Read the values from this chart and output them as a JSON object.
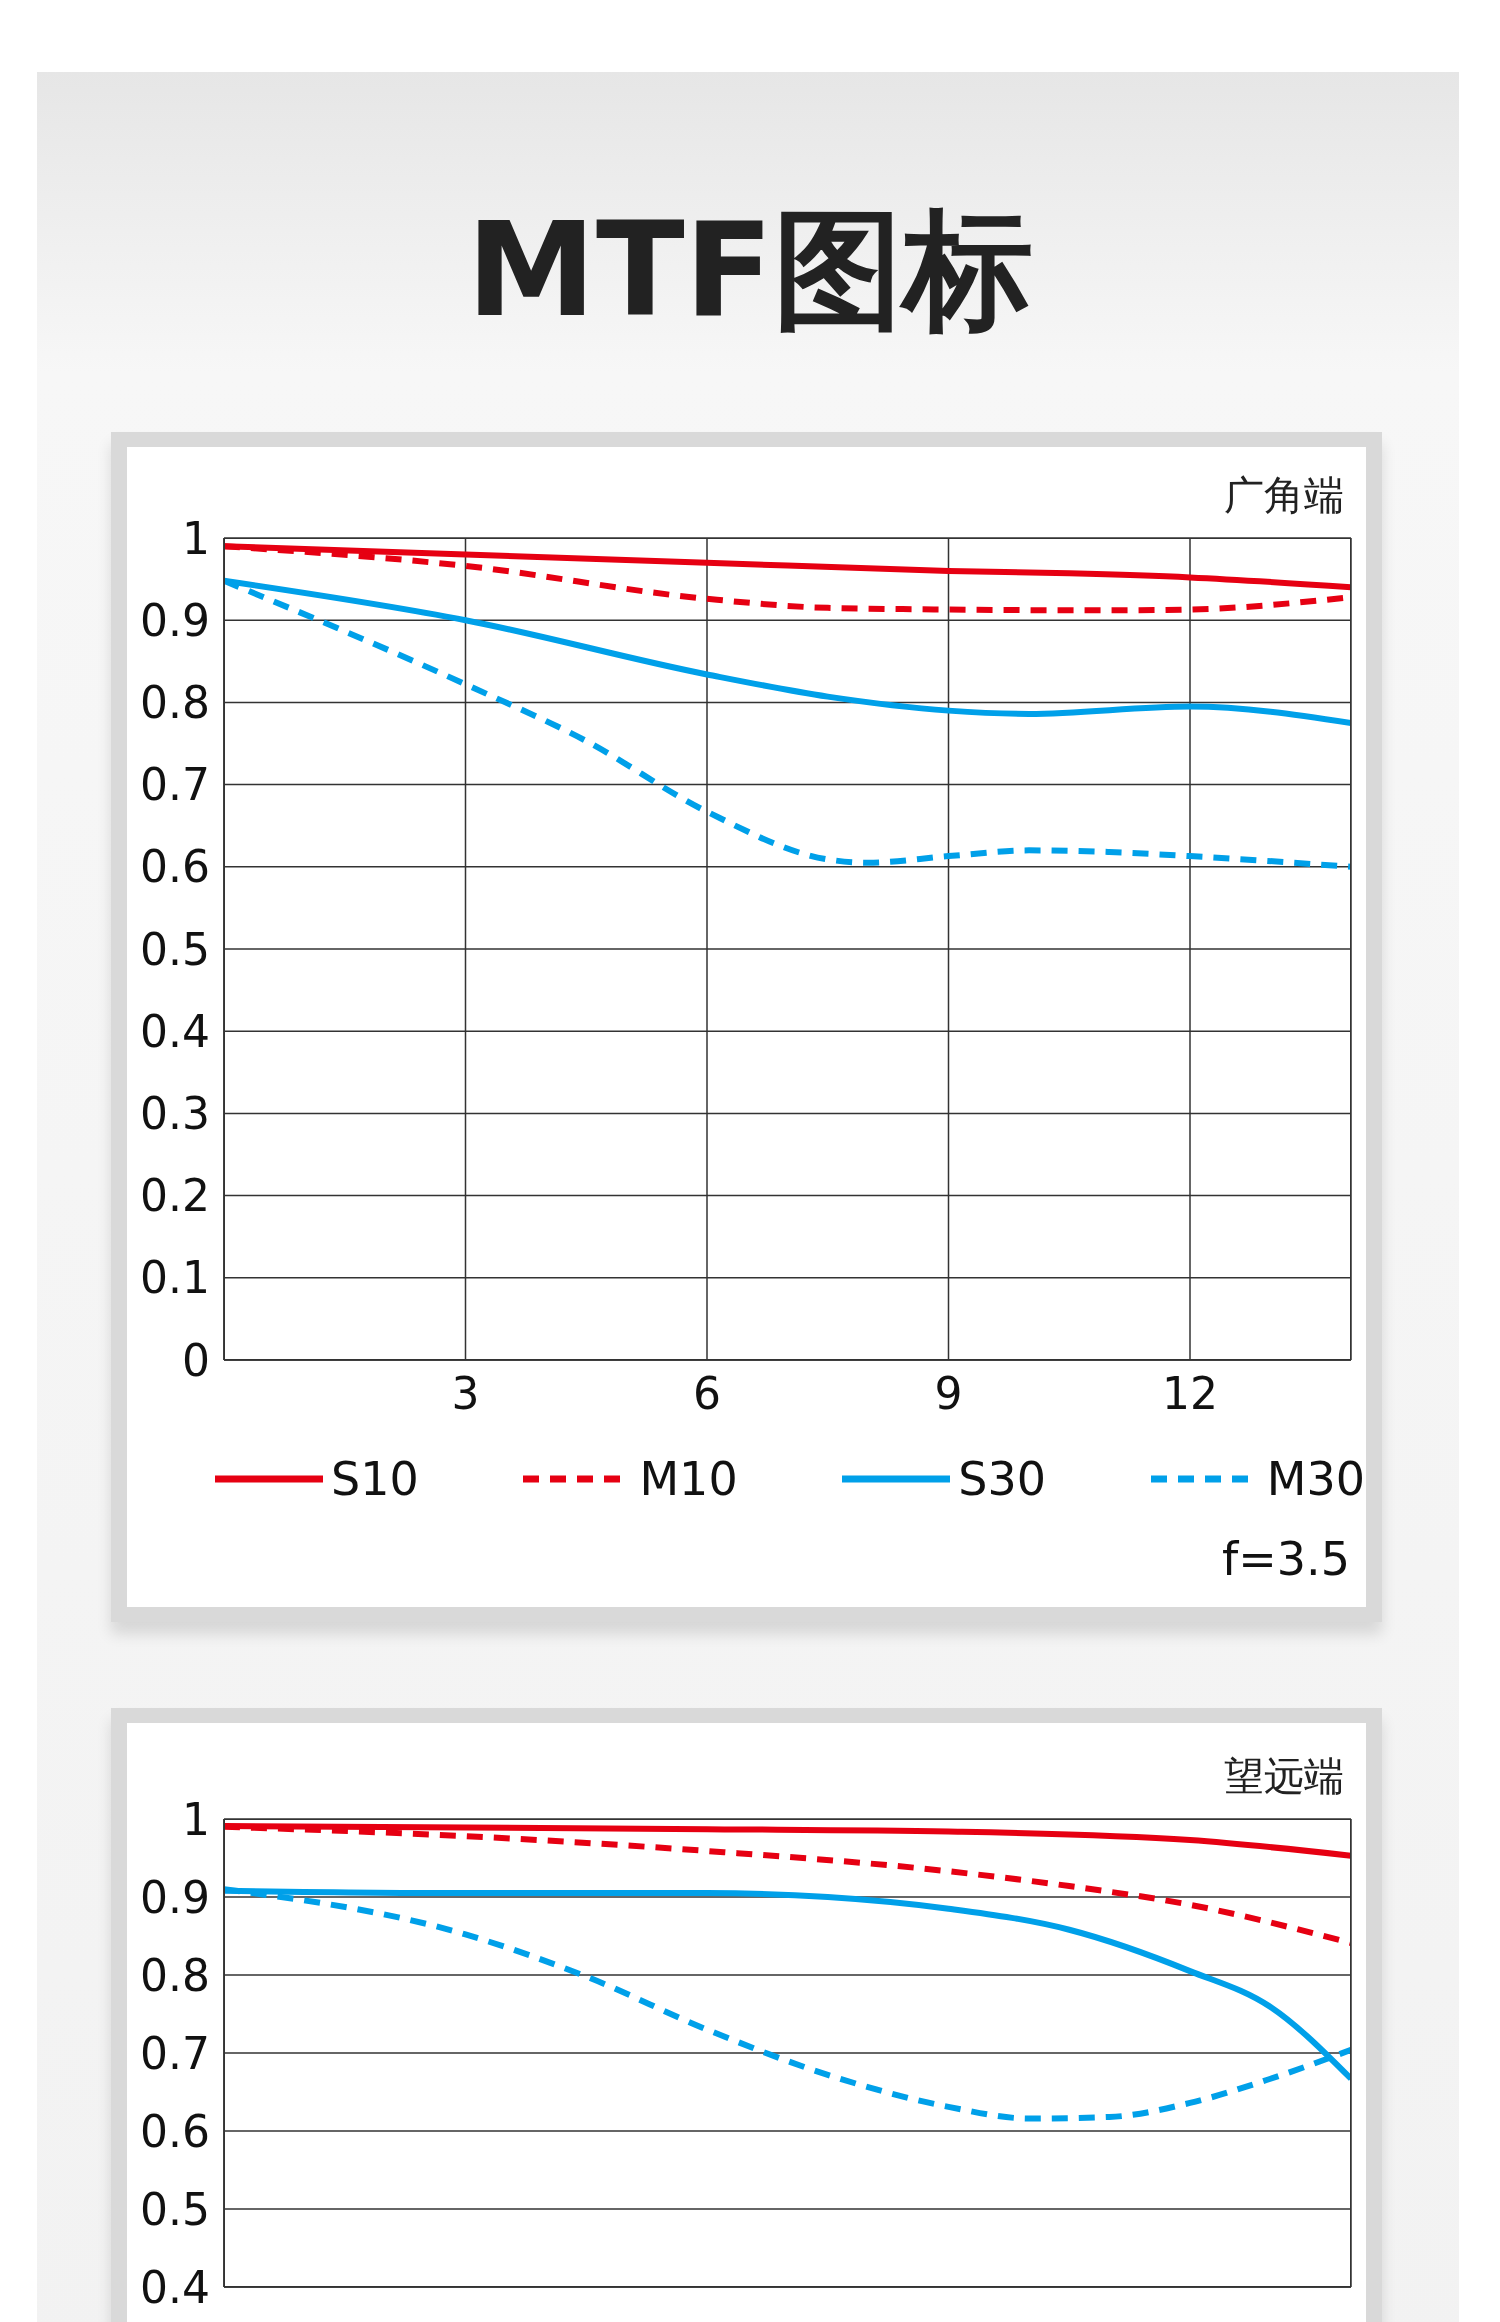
{
  "chart_data": [
    {
      "type": "line",
      "title": "MTF图标",
      "annotations": [
        "广角端",
        "f=3.5"
      ],
      "xlim": [
        0,
        14
      ],
      "xticks": [
        3,
        6,
        9,
        12
      ],
      "ylim": [
        0,
        1
      ],
      "yticks": [
        0,
        0.1,
        0.2,
        0.3,
        0.4,
        0.5,
        0.6,
        0.7,
        0.8,
        0.9,
        1
      ],
      "grid": true,
      "legend": "bottom",
      "series": [
        {
          "name": "S10",
          "color": "#e60012",
          "line_style": "solid",
          "x": [
            0,
            3,
            6,
            9,
            10.5,
            12,
            14
          ],
          "values": [
            0.99,
            0.98,
            0.97,
            0.96,
            0.957,
            0.952,
            0.94
          ]
        },
        {
          "name": "M10",
          "color": "#e60012",
          "line_style": "dashed",
          "x": [
            0,
            3,
            6,
            7.5,
            9,
            11,
            12,
            14
          ],
          "values": [
            0.99,
            0.966,
            0.926,
            0.915,
            0.913,
            0.912,
            0.913,
            0.928
          ]
        },
        {
          "name": "S30",
          "color": "#00a0e9",
          "line_style": "solid",
          "x": [
            0,
            3,
            6,
            7.5,
            9,
            10,
            12,
            14
          ],
          "values": [
            0.948,
            0.9,
            0.834,
            0.807,
            0.79,
            0.786,
            0.795,
            0.775
          ]
        },
        {
          "name": "M30",
          "color": "#00a0e9",
          "line_style": "dashed",
          "x": [
            0,
            3,
            4.5,
            6,
            7.5,
            8,
            9,
            10,
            11,
            12,
            14
          ],
          "values": [
            0.948,
            0.822,
            0.753,
            0.667,
            0.609,
            0.605,
            0.613,
            0.62,
            0.618,
            0.613,
            0.6
          ]
        }
      ]
    },
    {
      "type": "line",
      "annotations": [
        "望远端"
      ],
      "xlim": [
        0,
        14
      ],
      "xticks": [
        3,
        6,
        9,
        12
      ],
      "ylim": [
        0.4,
        1
      ],
      "yticks": [
        0.4,
        0.5,
        0.6,
        0.7,
        0.8,
        0.9,
        1
      ],
      "grid": true,
      "tick_labels": "y",
      "series": [
        {
          "color": "#e60012",
          "line_style": "solid",
          "x": [
            0,
            6,
            9,
            12,
            14
          ],
          "values": [
            0.991,
            0.987,
            0.984,
            0.973,
            0.953
          ]
        },
        {
          "color": "#e60012",
          "line_style": "dashed",
          "x": [
            0,
            3,
            6,
            9,
            10.5,
            12,
            14
          ],
          "values": [
            0.99,
            0.978,
            0.959,
            0.933,
            0.914,
            0.89,
            0.841
          ]
        },
        {
          "color": "#00a0e9",
          "line_style": "solid",
          "x": [
            0,
            3,
            6,
            7.5,
            9,
            10.5,
            12,
            13,
            14
          ],
          "values": [
            0.908,
            0.905,
            0.905,
            0.9,
            0.885,
            0.858,
            0.805,
            0.759,
            0.667
          ]
        },
        {
          "color": "#00a0e9",
          "line_style": "dashed",
          "x": [
            0,
            3,
            4.5,
            6,
            7.5,
            9,
            10,
            11,
            12,
            13,
            14
          ],
          "values": [
            0.91,
            0.852,
            0.798,
            0.73,
            0.672,
            0.631,
            0.616,
            0.618,
            0.636,
            0.667,
            0.704
          ]
        }
      ]
    }
  ]
}
